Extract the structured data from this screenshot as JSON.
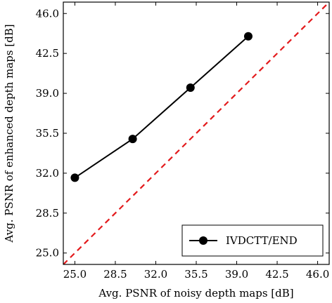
{
  "chart_data": {
    "type": "line",
    "title": "",
    "xlabel": "Avg. PSNR of noisy depth maps [dB]",
    "ylabel": "Avg. PSNR of enhanced depth maps [dB]",
    "xlim": [
      24.0,
      47.0
    ],
    "ylim": [
      24.0,
      47.0
    ],
    "x_ticks": [
      25.0,
      28.5,
      32.0,
      35.5,
      39.0,
      42.5,
      46.0
    ],
    "y_ticks": [
      25.0,
      28.5,
      32.0,
      35.5,
      39.0,
      42.5,
      46.0
    ],
    "x_tick_labels": [
      "25.0",
      "28.5",
      "32.0",
      "35.5",
      "39.0",
      "42.5",
      "46.0"
    ],
    "y_tick_labels": [
      "25.0",
      "28.5",
      "32.0",
      "35.5",
      "39.0",
      "42.5",
      "46.0"
    ],
    "grid": false,
    "legend_position": "bottom-right",
    "series": [
      {
        "name": "IVDCTT/END",
        "color": "#000000",
        "marker": "circle",
        "x": [
          25.0,
          30.0,
          35.0,
          40.0
        ],
        "y": [
          31.6,
          35.0,
          39.5,
          44.0
        ]
      }
    ],
    "reference_line": {
      "color": "#e31a1c",
      "style": "dashed",
      "x": [
        24.0,
        47.0
      ],
      "y": [
        24.0,
        47.0
      ]
    }
  }
}
